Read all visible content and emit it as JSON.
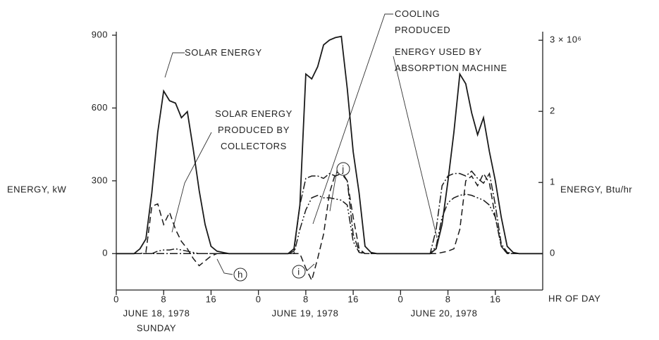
{
  "chart_data": {
    "type": "line",
    "x": [
      0,
      1,
      2,
      3,
      4,
      5,
      6,
      7,
      8,
      9,
      10,
      11,
      12,
      13,
      14,
      15,
      16,
      17,
      18,
      19,
      20,
      21,
      22,
      23,
      24,
      25,
      26,
      27,
      28,
      29,
      30,
      31,
      32,
      33,
      34,
      35,
      36,
      37,
      38,
      39,
      40,
      41,
      42,
      43,
      44,
      45,
      46,
      47,
      48,
      49,
      50,
      51,
      52,
      53,
      54,
      55,
      56,
      57,
      58,
      59,
      60,
      61,
      62,
      63,
      64,
      65,
      66,
      67,
      68,
      69,
      70,
      71,
      72
    ],
    "series": [
      {
        "name": "SOLAR ENERGY",
        "color": "#1a1a1a",
        "dash": "solid",
        "values": [
          0,
          0,
          0,
          0,
          20,
          60,
          250,
          500,
          670,
          630,
          620,
          560,
          585,
          430,
          260,
          120,
          30,
          10,
          5,
          0,
          0,
          0,
          0,
          0,
          0,
          0,
          0,
          0,
          0,
          0,
          20,
          200,
          740,
          720,
          770,
          860,
          880,
          890,
          895,
          680,
          420,
          250,
          30,
          5,
          0,
          0,
          0,
          0,
          0,
          0,
          0,
          0,
          0,
          0,
          20,
          120,
          300,
          500,
          740,
          700,
          580,
          490,
          560,
          420,
          300,
          150,
          30,
          5,
          0,
          0,
          0,
          0,
          0
        ]
      },
      {
        "name": "SOLAR ENERGY PRODUCED BY COLLECTORS",
        "color": "#1a1a1a",
        "dash": "dashed",
        "values": [
          0,
          0,
          0,
          0,
          0,
          5,
          195,
          205,
          120,
          170,
          100,
          50,
          20,
          -20,
          -50,
          -30,
          -10,
          0,
          0,
          0,
          0,
          0,
          0,
          0,
          0,
          0,
          0,
          0,
          0,
          0,
          0,
          0,
          -60,
          -110,
          -20,
          80,
          250,
          330,
          340,
          300,
          150,
          20,
          0,
          0,
          0,
          0,
          0,
          0,
          0,
          0,
          0,
          0,
          0,
          0,
          0,
          5,
          10,
          20,
          100,
          300,
          320,
          280,
          330,
          290,
          150,
          30,
          0,
          0,
          0,
          0,
          0,
          0,
          0
        ]
      },
      {
        "name": "COOLING PRODUCED",
        "color": "#1a1a1a",
        "dash": "dashdotdot",
        "values": [
          0,
          0,
          0,
          0,
          0,
          0,
          0,
          10,
          15,
          15,
          20,
          15,
          10,
          5,
          0,
          0,
          0,
          0,
          0,
          0,
          0,
          0,
          0,
          0,
          0,
          0,
          0,
          0,
          0,
          0,
          0,
          100,
          180,
          230,
          240,
          230,
          230,
          225,
          220,
          200,
          50,
          5,
          0,
          0,
          0,
          0,
          0,
          0,
          0,
          0,
          0,
          0,
          0,
          0,
          30,
          150,
          210,
          230,
          240,
          245,
          240,
          230,
          220,
          200,
          150,
          30,
          0,
          0,
          0,
          0,
          0,
          0,
          0
        ]
      },
      {
        "name": "ENERGY USED BY ABSORPTION MACHINE",
        "color": "#1a1a1a",
        "dash": "dashdot",
        "values": [
          0,
          0,
          0,
          0,
          0,
          0,
          0,
          0,
          0,
          0,
          0,
          0,
          0,
          0,
          0,
          0,
          0,
          0,
          0,
          0,
          0,
          0,
          0,
          0,
          0,
          0,
          0,
          0,
          0,
          0,
          10,
          200,
          310,
          320,
          320,
          310,
          330,
          320,
          330,
          300,
          80,
          10,
          0,
          0,
          0,
          0,
          0,
          0,
          0,
          0,
          0,
          0,
          0,
          0,
          100,
          280,
          320,
          330,
          330,
          320,
          340,
          310,
          290,
          330,
          200,
          40,
          5,
          0,
          0,
          0,
          0,
          0,
          0
        ]
      }
    ],
    "xlim": [
      0,
      72
    ],
    "xticks": [
      0,
      8,
      16,
      {
        "value": 24,
        "label": "0"
      },
      {
        "value": 32,
        "label": "8"
      },
      {
        "value": 40,
        "label": "16"
      },
      {
        "value": 48,
        "label": "0"
      },
      {
        "value": 56,
        "label": "8"
      },
      {
        "value": 64,
        "label": "16"
      }
    ],
    "x_label": "HR OF DAY",
    "ylim": [
      -150,
      900
    ],
    "yticks": [
      0,
      300,
      600,
      900
    ],
    "y_label": "ENERGY, kW",
    "y2lim": [
      -512000,
      3071000
    ],
    "y2ticks": [
      0,
      {
        "value": 1000000,
        "label": "1"
      },
      {
        "value": 2000000,
        "label": "2"
      },
      {
        "value": 3000000,
        "label": "3 × 10⁶"
      }
    ],
    "y2_label": "ENERGY, Btu/hr",
    "date_labels": [
      "JUNE 18, 1978",
      "SUNDAY",
      "JUNE 19, 1978",
      "JUNE 20, 1978"
    ],
    "circled_labels": [
      "h",
      "i",
      "j"
    ],
    "grid": false
  }
}
